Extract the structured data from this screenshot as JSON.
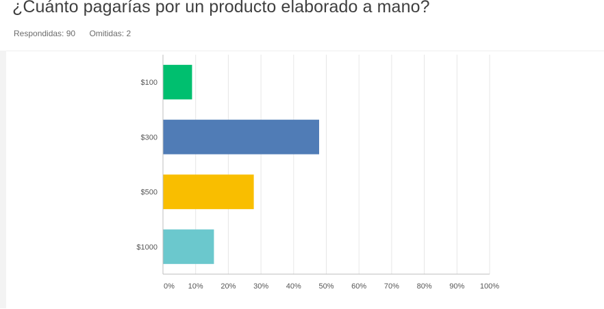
{
  "question": {
    "title": "¿Cuánto pagarías por un producto elaborado a mano?",
    "answered_label": "Respondidas:",
    "answered_count": "90",
    "skipped_label": "Omitidas:",
    "skipped_count": "2"
  },
  "chart_data": {
    "type": "bar",
    "orientation": "horizontal",
    "title": "¿Cuánto pagarías por un producto elaborado a mano?",
    "categories": [
      "$100",
      "$300",
      "$500",
      "$1000"
    ],
    "values": [
      8.9,
      47.8,
      27.8,
      15.6
    ],
    "unit": "%",
    "colors": [
      "#00bf6f",
      "#507cb6",
      "#f9be00",
      "#6bc8cd"
    ],
    "xlim": [
      0,
      100
    ],
    "xticks": [
      0,
      10,
      20,
      30,
      40,
      50,
      60,
      70,
      80,
      90,
      100
    ],
    "xtick_labels": [
      "0%",
      "10%",
      "20%",
      "30%",
      "40%",
      "50%",
      "60%",
      "70%",
      "80%",
      "90%",
      "100%"
    ],
    "grid": true,
    "gridline_color": "#e6e6e6"
  }
}
